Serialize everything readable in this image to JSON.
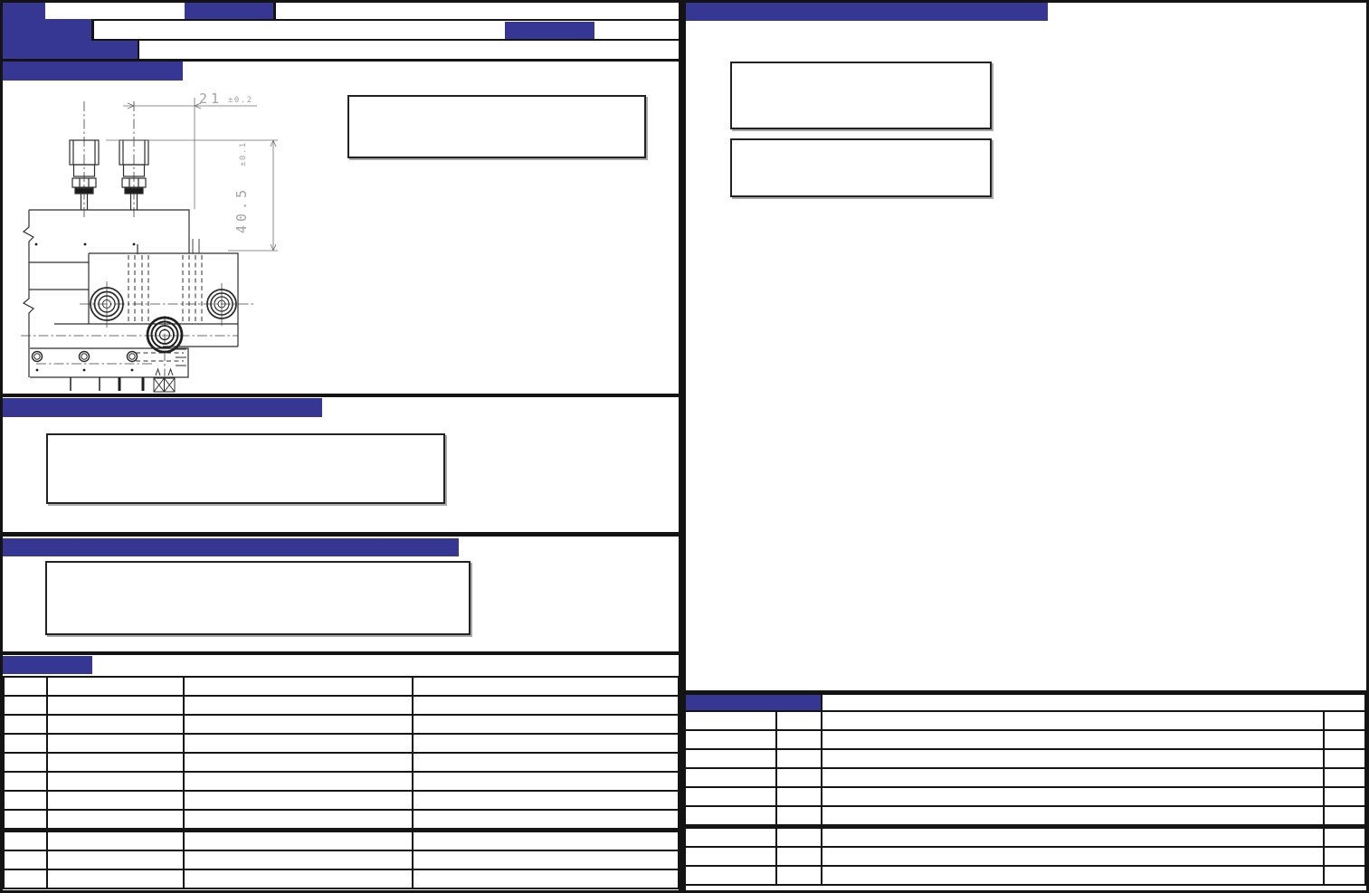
{
  "page": {
    "type": "engineering-drawing-datasheet",
    "accent_color": "#363693",
    "frame_color": "#141414",
    "dim_text_color": "#a3a3a3"
  },
  "drawing": {
    "dim_horizontal": {
      "value": "21",
      "tolerance": "±0.2"
    },
    "dim_vertical": {
      "value": "40.5",
      "tolerance": "±0.1"
    }
  },
  "left_table": {
    "rows": 11,
    "columns": 4,
    "thick_after_row": 8
  },
  "right_table": {
    "rows": 9,
    "columns": 4,
    "thick_after_row": 6
  }
}
